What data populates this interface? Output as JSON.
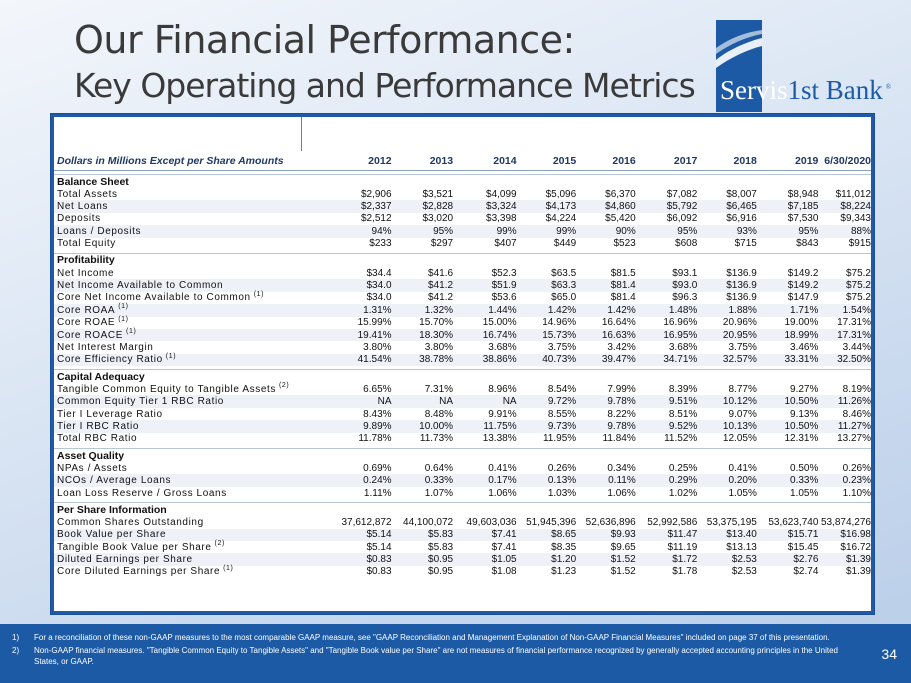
{
  "title_line1": "Our Financial Performance:",
  "title_line2": "Key Operating and Performance Metrics",
  "logo": {
    "part1": "Servis",
    "part2": "1st Bank",
    "mark": "®"
  },
  "table": {
    "header_label": "Dollars in Millions Except per Share Amounts",
    "years": [
      "2012",
      "2013",
      "2014",
      "2015",
      "2016",
      "2017",
      "2018",
      "2019",
      "6/30/2020"
    ],
    "sections": [
      {
        "title": "Balance Sheet",
        "rows": [
          {
            "label": "Total Assets",
            "note": "",
            "values": [
              "$2,906",
              "$3,521",
              "$4,099",
              "$5,096",
              "$6,370",
              "$7,082",
              "$8,007",
              "$8,948",
              "$11,012"
            ]
          },
          {
            "label": "Net Loans",
            "note": "",
            "values": [
              "$2,337",
              "$2,828",
              "$3,324",
              "$4,173",
              "$4,860",
              "$5,792",
              "$6,465",
              "$7,185",
              "$8,224"
            ]
          },
          {
            "label": "Deposits",
            "note": "",
            "values": [
              "$2,512",
              "$3,020",
              "$3,398",
              "$4,224",
              "$5,420",
              "$6,092",
              "$6,916",
              "$7,530",
              "$9,343"
            ]
          },
          {
            "label": "Loans / Deposits",
            "note": "",
            "values": [
              "94%",
              "95%",
              "99%",
              "99%",
              "90%",
              "95%",
              "93%",
              "95%",
              "88%"
            ]
          },
          {
            "label": "Total Equity",
            "note": "",
            "values": [
              "$233",
              "$297",
              "$407",
              "$449",
              "$523",
              "$608",
              "$715",
              "$843",
              "$915"
            ]
          }
        ]
      },
      {
        "title": "Profitability",
        "rows": [
          {
            "label": "Net Income",
            "note": "",
            "values": [
              "$34.4",
              "$41.6",
              "$52.3",
              "$63.5",
              "$81.5",
              "$93.1",
              "$136.9",
              "$149.2",
              "$75.2"
            ]
          },
          {
            "label": "Net Income Available to Common",
            "note": "",
            "values": [
              "$34.0",
              "$41.2",
              "$51.9",
              "$63.3",
              "$81.4",
              "$93.0",
              "$136.9",
              "$149.2",
              "$75.2"
            ]
          },
          {
            "label": "Core Net Income Available to Common",
            "note": "(1)",
            "values": [
              "$34.0",
              "$41.2",
              "$53.6",
              "$65.0",
              "$81.4",
              "$96.3",
              "$136.9",
              "$147.9",
              "$75.2"
            ]
          },
          {
            "label": "Core ROAA",
            "note": "(1)",
            "values": [
              "1.31%",
              "1.32%",
              "1.44%",
              "1.42%",
              "1.42%",
              "1.48%",
              "1.88%",
              "1.71%",
              "1.54%"
            ]
          },
          {
            "label": "Core ROAE",
            "note": "(1)",
            "values": [
              "15.99%",
              "15.70%",
              "15.00%",
              "14.96%",
              "16.64%",
              "16.96%",
              "20.96%",
              "19.00%",
              "17.31%"
            ]
          },
          {
            "label": "Core ROACE",
            "note": "(1)",
            "values": [
              "19.41%",
              "18.30%",
              "16.74%",
              "15.73%",
              "16.63%",
              "16.95%",
              "20.95%",
              "18.99%",
              "17.31%"
            ]
          },
          {
            "label": "Net Interest Margin",
            "note": "",
            "values": [
              "3.80%",
              "3.80%",
              "3.68%",
              "3.75%",
              "3.42%",
              "3.68%",
              "3.75%",
              "3.46%",
              "3.44%"
            ]
          },
          {
            "label": "Core Efficiency Ratio",
            "note": "(1)",
            "values": [
              "41.54%",
              "38.78%",
              "38.86%",
              "40.73%",
              "39.47%",
              "34.71%",
              "32.57%",
              "33.31%",
              "32.50%"
            ]
          }
        ]
      },
      {
        "title": "Capital Adequacy",
        "rows": [
          {
            "label": "Tangible Common Equity to Tangible Assets",
            "note": "(2)",
            "values": [
              "6.65%",
              "7.31%",
              "8.96%",
              "8.54%",
              "7.99%",
              "8.39%",
              "8.77%",
              "9.27%",
              "8.19%"
            ]
          },
          {
            "label": "Common Equity Tier 1 RBC Ratio",
            "note": "",
            "values": [
              "NA",
              "NA",
              "NA",
              "9.72%",
              "9.78%",
              "9.51%",
              "10.12%",
              "10.50%",
              "11.26%"
            ]
          },
          {
            "label": "Tier I Leverage Ratio",
            "note": "",
            "values": [
              "8.43%",
              "8.48%",
              "9.91%",
              "8.55%",
              "8.22%",
              "8.51%",
              "9.07%",
              "9.13%",
              "8.46%"
            ]
          },
          {
            "label": "Tier I RBC Ratio",
            "note": "",
            "values": [
              "9.89%",
              "10.00%",
              "11.75%",
              "9.73%",
              "9.78%",
              "9.52%",
              "10.13%",
              "10.50%",
              "11.27%"
            ]
          },
          {
            "label": "Total RBC Ratio",
            "note": "",
            "values": [
              "11.78%",
              "11.73%",
              "13.38%",
              "11.95%",
              "11.84%",
              "11.52%",
              "12.05%",
              "12.31%",
              "13.27%"
            ]
          }
        ]
      },
      {
        "title": "Asset Quality",
        "rows": [
          {
            "label": "NPAs / Assets",
            "note": "",
            "values": [
              "0.69%",
              "0.64%",
              "0.41%",
              "0.26%",
              "0.34%",
              "0.25%",
              "0.41%",
              "0.50%",
              "0.26%"
            ]
          },
          {
            "label": "NCOs / Average Loans",
            "note": "",
            "values": [
              "0.24%",
              "0.33%",
              "0.17%",
              "0.13%",
              "0.11%",
              "0.29%",
              "0.20%",
              "0.33%",
              "0.23%"
            ]
          },
          {
            "label": "Loan Loss Reserve / Gross Loans",
            "note": "",
            "values": [
              "1.11%",
              "1.07%",
              "1.06%",
              "1.03%",
              "1.06%",
              "1.02%",
              "1.05%",
              "1.05%",
              "1.10%"
            ]
          }
        ]
      },
      {
        "title": "Per Share Information",
        "rows": [
          {
            "label": "Common Shares Outstanding",
            "note": "",
            "values": [
              "37,612,872",
              "44,100,072",
              "49,603,036",
              "51,945,396",
              "52,636,896",
              "52,992,586",
              "53,375,195",
              "53,623,740",
              "53,874,276"
            ]
          },
          {
            "label": "Book Value per Share",
            "note": "",
            "values": [
              "$5.14",
              "$5.83",
              "$7.41",
              "$8.65",
              "$9.93",
              "$11.47",
              "$13.40",
              "$15.71",
              "$16.98"
            ]
          },
          {
            "label": "Tangible Book Value per Share",
            "note": "(2)",
            "values": [
              "$5.14",
              "$5.83",
              "$7.41",
              "$8.35",
              "$9.65",
              "$11.19",
              "$13.13",
              "$15.45",
              "$16.72"
            ]
          },
          {
            "label": "Diluted Earnings per Share",
            "note": "",
            "values": [
              "$0.83",
              "$0.95",
              "$1.05",
              "$1.20",
              "$1.52",
              "$1.72",
              "$2.53",
              "$2.76",
              "$1.39"
            ]
          },
          {
            "label": "Core Diluted Earnings per Share",
            "note": "(1)",
            "values": [
              "$0.83",
              "$0.95",
              "$1.08",
              "$1.23",
              "$1.52",
              "$1.78",
              "$2.53",
              "$2.74",
              "$1.39"
            ]
          }
        ]
      }
    ]
  },
  "footnotes": [
    {
      "num": "1)",
      "text": "For a reconciliation of these non-GAAP measures to the most comparable GAAP measure, see \"GAAP Reconciliation and Management Explanation of Non-GAAP Financial Measures\" included on page 37 of this presentation."
    },
    {
      "num": "2)",
      "text": "Non-GAAP financial measures. \"Tangible Common Equity to Tangible Assets\" and \"Tangible Book value per Share\" are not measures of financial performance recognized by generally accepted accounting principles in the United States, or GAAP."
    }
  ],
  "page_number": "34",
  "colors": {
    "brand_blue": "#1c5aa5",
    "title_gray": "#3a3a3a"
  }
}
